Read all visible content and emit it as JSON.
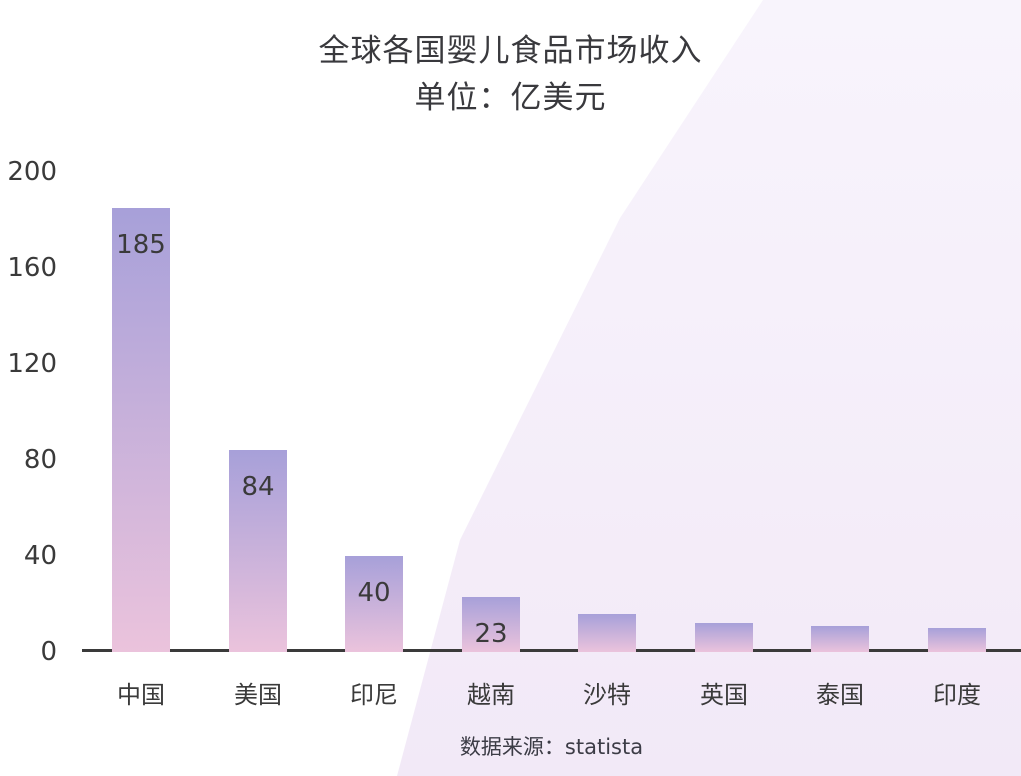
{
  "title": {
    "line1": "全球各国婴儿食品市场收入",
    "line2": "单位：亿美元"
  },
  "source_label": "数据来源：statista",
  "chart_data": {
    "type": "bar",
    "title": "全球各国婴儿食品市场收入",
    "subtitle": "单位：亿美元",
    "unit": "亿美元",
    "categories": [
      "中国",
      "美国",
      "印尼",
      "越南",
      "沙特",
      "英国",
      "泰国",
      "印度"
    ],
    "values": [
      185,
      84,
      40,
      23,
      16,
      12,
      11,
      10
    ],
    "bar_labels": [
      "185",
      "84",
      "40",
      "23",
      "",
      "",
      "",
      ""
    ],
    "xlabel": "",
    "ylabel": "亿美元",
    "ylim": [
      0,
      200
    ],
    "yticks": [
      0,
      40,
      80,
      120,
      160,
      200
    ],
    "grid": false,
    "legend": "none",
    "source": "数据来源：statista"
  },
  "colors": {
    "bar_gradient_top": "#a7a0d9",
    "bar_gradient_bottom": "#ebc3dc",
    "axis_line": "#3a3a3a",
    "text": "#39393d",
    "background_tint_top": "#f8f4fc",
    "background_tint_bottom": "#f2e9f7"
  }
}
